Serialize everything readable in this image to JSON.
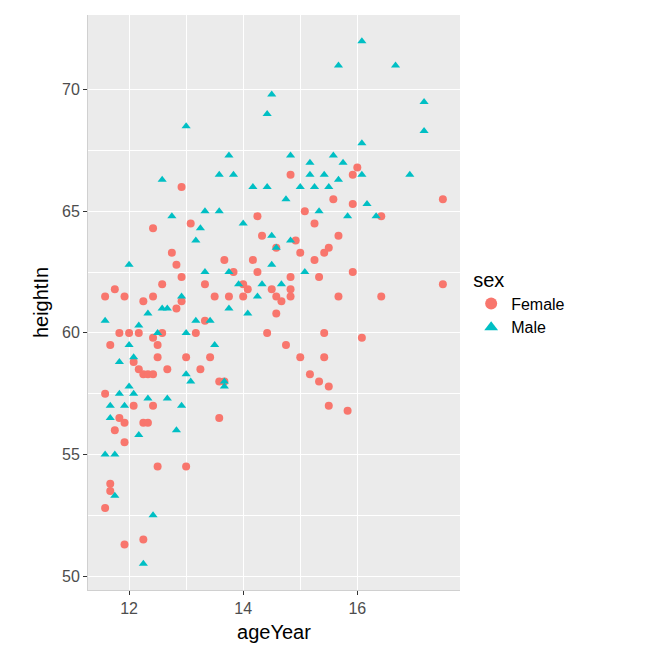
{
  "chart_data": {
    "type": "scatter",
    "x_label": "ageYear",
    "y_label": "heightIn",
    "legend_title": "sex",
    "legend": "right",
    "grid": true,
    "xlim": [
      11.28,
      17.8
    ],
    "ylim": [
      49.425,
      73.075
    ],
    "xticks": [
      12,
      14,
      16
    ],
    "yticks": [
      50,
      55,
      60,
      65,
      70
    ],
    "series": [
      {
        "name": "Female",
        "color": "#F8766D",
        "marker": "circle",
        "x": [
          11.58,
          11.67,
          11.67,
          11.58,
          11.58,
          11.75,
          11.67,
          11.83,
          11.92,
          11.92,
          11.92,
          12.0,
          11.75,
          11.83,
          11.92,
          12.08,
          12.08,
          12.17,
          12.17,
          12.25,
          12.25,
          12.25,
          12.25,
          12.33,
          12.33,
          12.42,
          12.42,
          12.42,
          12.42,
          12.42,
          12.5,
          12.5,
          12.5,
          12.58,
          12.58,
          12.67,
          12.75,
          12.83,
          12.83,
          12.92,
          12.92,
          12.92,
          13.0,
          13.0,
          13.08,
          13.17,
          13.25,
          13.33,
          13.33,
          13.42,
          13.5,
          13.58,
          13.58,
          13.67,
          13.67,
          13.75,
          13.83,
          14.0,
          14.0,
          14.08,
          14.17,
          14.25,
          14.25,
          14.33,
          14.42,
          14.5,
          14.58,
          14.58,
          14.58,
          14.67,
          14.75,
          14.83,
          14.83,
          14.83,
          14.83,
          14.92,
          15.0,
          15.0,
          15.08,
          15.17,
          15.25,
          15.25,
          15.33,
          15.33,
          15.42,
          15.42,
          15.42,
          15.5,
          15.5,
          15.5,
          15.58,
          15.67,
          15.67,
          15.83,
          15.92,
          15.92,
          15.92,
          16.0,
          16.08,
          16.42,
          16.42,
          17.5,
          17.5
        ],
        "values": [
          52.8,
          53.5,
          53.8,
          57.5,
          61.5,
          61.8,
          59.5,
          56.5,
          56.3,
          55.5,
          51.3,
          60.0,
          56.0,
          60.0,
          61.5,
          58.8,
          57.0,
          58.5,
          60.0,
          61.3,
          58.3,
          56.3,
          51.5,
          56.3,
          58.3,
          57.0,
          58.3,
          59.8,
          61.5,
          64.3,
          54.5,
          59.5,
          59.0,
          62.0,
          60.0,
          58.5,
          63.3,
          62.8,
          61.0,
          62.3,
          61.3,
          66.0,
          54.5,
          59.0,
          64.5,
          60.0,
          58.5,
          62.0,
          60.5,
          59.0,
          61.5,
          58.0,
          56.5,
          63.0,
          58.0,
          61.5,
          62.5,
          61.5,
          62.0,
          61.8,
          63.0,
          62.5,
          64.8,
          64.0,
          60.0,
          61.8,
          60.8,
          61.5,
          63.5,
          61.3,
          59.5,
          61.8,
          61.5,
          62.3,
          66.5,
          63.8,
          63.3,
          59.0,
          65.0,
          58.3,
          63.0,
          64.5,
          62.3,
          58.0,
          60.0,
          59.0,
          63.3,
          57.8,
          57.0,
          63.5,
          65.5,
          61.5,
          64.0,
          56.8,
          62.5,
          65.3,
          66.5,
          66.8,
          59.8,
          61.5,
          64.8,
          65.5,
          62.0
        ]
      },
      {
        "name": "Male",
        "color": "#00BFC4",
        "marker": "triangle-up",
        "x": [
          11.58,
          11.58,
          11.67,
          11.67,
          11.75,
          11.75,
          11.83,
          11.83,
          11.92,
          12.0,
          12.0,
          12.0,
          12.08,
          12.08,
          12.17,
          12.17,
          12.25,
          12.33,
          12.33,
          12.42,
          12.5,
          12.58,
          12.58,
          12.67,
          12.67,
          12.75,
          12.83,
          12.92,
          12.92,
          13.0,
          13.0,
          13.0,
          13.08,
          13.17,
          13.17,
          13.25,
          13.33,
          13.33,
          13.42,
          13.5,
          13.58,
          13.58,
          13.67,
          13.67,
          13.75,
          13.75,
          13.75,
          13.83,
          13.92,
          14.0,
          14.08,
          14.17,
          14.25,
          14.33,
          14.42,
          14.42,
          14.5,
          14.5,
          14.5,
          14.58,
          14.67,
          14.75,
          14.83,
          14.83,
          15.0,
          15.08,
          15.17,
          15.17,
          15.25,
          15.33,
          15.42,
          15.5,
          15.58,
          15.67,
          15.67,
          15.75,
          15.83,
          16.08,
          16.08,
          16.08,
          16.17,
          16.33,
          16.67,
          16.92,
          17.17,
          17.17
        ],
        "values": [
          60.5,
          55.0,
          57.0,
          56.5,
          53.3,
          55.0,
          57.5,
          58.8,
          57.0,
          59.5,
          62.8,
          57.8,
          59.0,
          57.5,
          55.8,
          60.3,
          50.5,
          60.8,
          57.3,
          52.5,
          60.0,
          61.0,
          66.3,
          57.3,
          61.0,
          64.8,
          56.0,
          57.0,
          61.5,
          58.3,
          68.5,
          60.0,
          58.0,
          63.8,
          60.5,
          64.3,
          62.5,
          65.0,
          60.5,
          59.5,
          66.5,
          65.0,
          58.0,
          57.8,
          67.3,
          62.5,
          61.0,
          66.5,
          62.0,
          64.5,
          60.8,
          66.0,
          61.5,
          62.0,
          69.0,
          66.0,
          69.8,
          64.0,
          62.8,
          63.5,
          62.0,
          65.5,
          63.8,
          67.3,
          66.0,
          62.5,
          66.5,
          67.0,
          66.0,
          65.0,
          66.5,
          66.0,
          67.3,
          71.0,
          66.3,
          67.0,
          64.8,
          72.0,
          66.5,
          67.8,
          65.3,
          64.8,
          71.0,
          66.5,
          69.5,
          68.3
        ]
      }
    ]
  }
}
